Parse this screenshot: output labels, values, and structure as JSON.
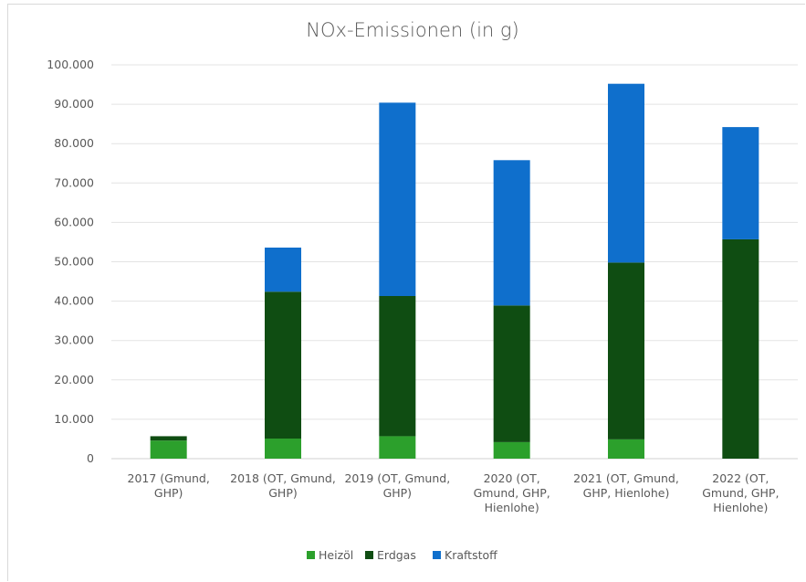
{
  "chart_data": {
    "type": "bar",
    "stacked": true,
    "title": "NOx-Emissionen (in g)",
    "xlabel": "",
    "ylabel": "",
    "ylim": [
      0,
      100000
    ],
    "yticks": [
      0,
      10000,
      20000,
      30000,
      40000,
      50000,
      60000,
      70000,
      80000,
      90000,
      100000
    ],
    "ytick_labels": [
      "0",
      "10.000",
      "20.000",
      "30.000",
      "40.000",
      "50.000",
      "60.000",
      "70.000",
      "80.000",
      "90.000",
      "100.000"
    ],
    "grid": true,
    "legend_position": "bottom",
    "categories": [
      [
        "2017 (Gmund,",
        "GHP)"
      ],
      [
        "2018 (OT, Gmund,",
        "GHP)"
      ],
      [
        "2019 (OT, Gmund,",
        "GHP)"
      ],
      [
        "2020 (OT,",
        "Gmund, GHP,",
        "Hienlohe)"
      ],
      [
        "2021 (OT, Gmund,",
        "GHP, Hienlohe)"
      ],
      [
        "2022 (OT,",
        "Gmund, GHP,",
        "Hienlohe)"
      ]
    ],
    "series": [
      {
        "name": "Heizöl",
        "color": "#2ca02c",
        "values": [
          4600,
          5100,
          5700,
          4200,
          4900,
          0
        ]
      },
      {
        "name": "Erdgas",
        "color": "#0f4d12",
        "values": [
          1100,
          37300,
          35600,
          34700,
          44900,
          55700
        ]
      },
      {
        "name": "Kraftstoff",
        "color": "#0f6fcc",
        "values": [
          0,
          11200,
          49100,
          36900,
          45400,
          28500
        ]
      }
    ]
  }
}
